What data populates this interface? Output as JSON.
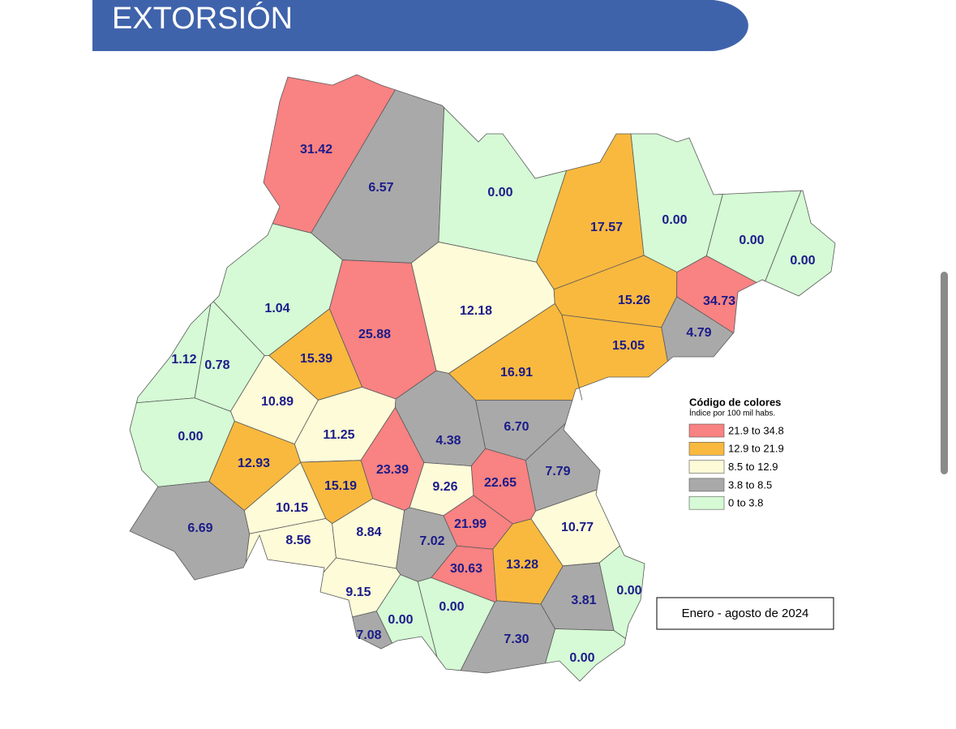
{
  "header": {
    "title": "EXTORSIÓN"
  },
  "chart_data": {
    "type": "choropleth",
    "regions": {
      "values": [
        31.42,
        6.57,
        0.0,
        17.57,
        0.0,
        0.0,
        0.0,
        1.04,
        25.88,
        12.18,
        15.26,
        34.73,
        4.79,
        15.05,
        15.39,
        1.12,
        0.78,
        16.91,
        10.89,
        0.0,
        11.25,
        6.7,
        4.38,
        12.93,
        23.39,
        22.65,
        7.79,
        15.19,
        9.26,
        6.69,
        10.15,
        21.99,
        10.77,
        8.56,
        8.84,
        7.02,
        30.63,
        13.28,
        9.15,
        3.81,
        0.0,
        0.0,
        0.0,
        7.08,
        7.3,
        0.0
      ],
      "value_labels": [
        "31.42",
        "6.57",
        "0.00",
        "17.57",
        "0.00",
        "0.00",
        "0.00",
        "1.04",
        "25.88",
        "12.18",
        "15.26",
        "34.73",
        "4.79",
        "15.05",
        "15.39",
        "1.12",
        "0.78",
        "16.91",
        "10.89",
        "0.00",
        "11.25",
        "6.70",
        "4.38",
        "12.93",
        "23.39",
        "22.65",
        "7.79",
        "15.19",
        "9.26",
        "6.69",
        "10.15",
        "21.99",
        "10.77",
        "8.56",
        "8.84",
        "7.02",
        "30.63",
        "13.28",
        "9.15",
        "3.81",
        "0.00",
        "0.00",
        "0.00",
        "7.08",
        "7.30",
        "0.00"
      ]
    },
    "legend": {
      "title": "Código de colores",
      "subtitle": "Índice por 100 mil habs.",
      "classes": [
        {
          "label": "21.9 to 34.8",
          "min": 21.9,
          "max": 34.8,
          "color": "#f98282"
        },
        {
          "label": "12.9 to 21.9",
          "min": 12.9,
          "max": 21.9,
          "color": "#f9b93e"
        },
        {
          "label": "8.5 to 12.9",
          "min": 8.5,
          "max": 12.9,
          "color": "#fdfbd8"
        },
        {
          "label": "3.8 to 8.5",
          "min": 3.8,
          "max": 8.5,
          "color": "#a9a9a9"
        },
        {
          "label": "0 to 3.8",
          "min": 0,
          "max": 3.8,
          "color": "#d5fad5"
        }
      ]
    },
    "note": "Enero - agosto de 2024"
  }
}
